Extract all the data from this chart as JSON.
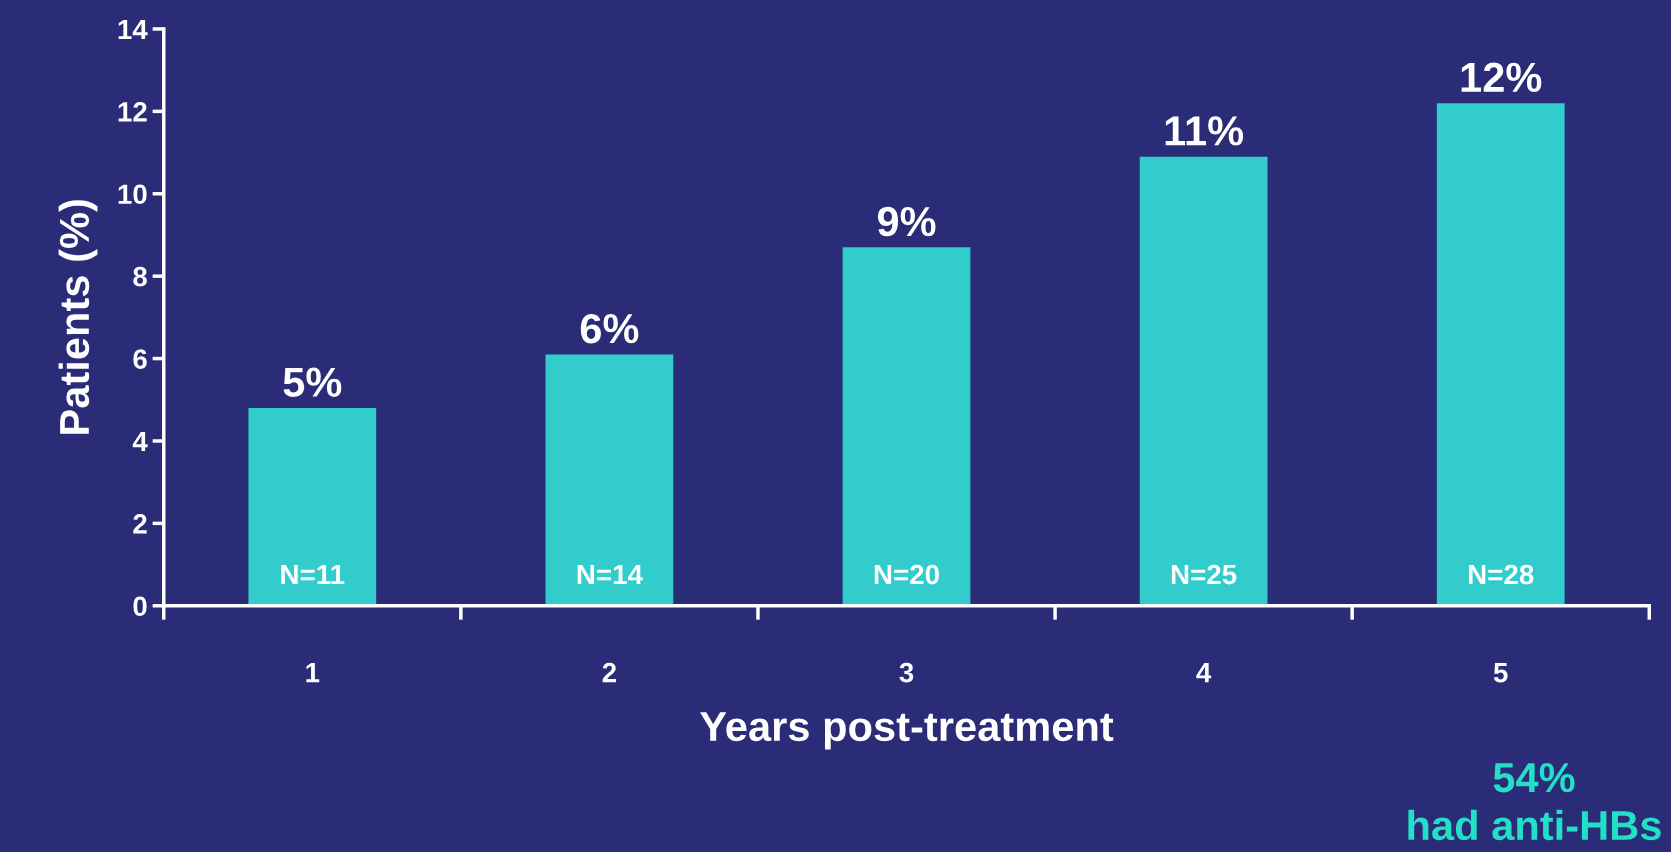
{
  "chart_data": {
    "type": "bar",
    "xlabel": "Years post-treatment",
    "ylabel": "Patients (%)",
    "categories": [
      "1",
      "2",
      "3",
      "4",
      "5"
    ],
    "values": [
      4.8,
      6.1,
      8.7,
      10.9,
      12.2
    ],
    "value_labels": [
      "5%",
      "6%",
      "9%",
      "11%",
      "12%"
    ],
    "color": "#33cccc",
    "ylim": [
      0,
      14
    ],
    "yticks": [
      0,
      2,
      4,
      6,
      8,
      10,
      12,
      14
    ],
    "grid": false,
    "annotations": [
      {
        "text": "N=11",
        "x": "1",
        "y": 0
      },
      {
        "text": "N=14",
        "x": "2",
        "y": 0
      },
      {
        "text": "N=20",
        "x": "3",
        "y": 0
      },
      {
        "text": "N=25",
        "x": "4",
        "y": 0
      },
      {
        "text": "N=28",
        "x": "5",
        "y": 0
      },
      "54%\nhad anti-HBs"
    ]
  }
}
